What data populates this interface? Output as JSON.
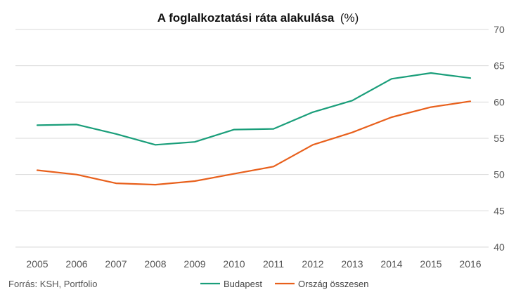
{
  "title": "A foglalkoztatási ráta alakulása",
  "title_unit": "(%)",
  "source": "Forrás: KSH, Portfolio",
  "chart_data": {
    "type": "line",
    "title": "A foglalkoztatási ráta alakulása (%)",
    "x": [
      "2005",
      "2006",
      "2007",
      "2008",
      "2009",
      "2010",
      "2011",
      "2012",
      "2013",
      "2014",
      "2015",
      "2016"
    ],
    "series": [
      {
        "name": "Budapest",
        "color": "#1a9e7a",
        "values": [
          56.8,
          56.9,
          55.6,
          54.1,
          54.5,
          56.2,
          56.3,
          58.6,
          60.2,
          63.2,
          64.0,
          63.3
        ]
      },
      {
        "name": "Ország összesen",
        "color": "#e8601c",
        "values": [
          50.6,
          50.0,
          48.8,
          48.6,
          49.1,
          50.1,
          51.1,
          54.1,
          55.8,
          57.9,
          59.3,
          60.1
        ]
      }
    ],
    "y_ticks": [
      "40",
      "45",
      "50",
      "55",
      "60",
      "65",
      "70"
    ],
    "ylim": [
      40,
      70
    ],
    "grid": true,
    "y_axis_side": "right",
    "legend_position": "bottom"
  }
}
